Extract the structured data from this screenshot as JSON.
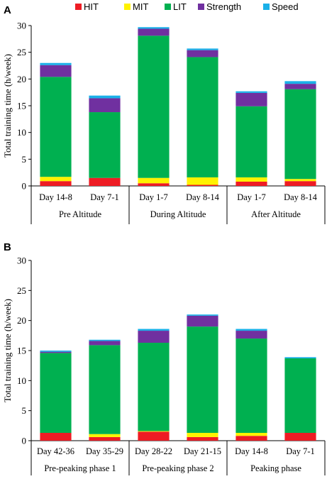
{
  "legend": {
    "items": [
      {
        "label": "HIT",
        "color": "#ee1c24"
      },
      {
        "label": "MIT",
        "color": "#fff200"
      },
      {
        "label": "LIT",
        "color": "#00b050"
      },
      {
        "label": "Strength",
        "color": "#7030a0"
      },
      {
        "label": "Speed",
        "color": "#1ab0e8"
      }
    ]
  },
  "chart_data": [
    {
      "type": "bar",
      "stacked": true,
      "panel_label": "A",
      "ylabel": "Total training time (h/week)",
      "ylim": [
        0,
        30
      ],
      "yticks": [
        "0",
        "5",
        "10",
        "15",
        "20",
        "25",
        "30"
      ],
      "categories": [
        "Day 14-8",
        "Day 7-1",
        "Day 1-7",
        "Day 8-14",
        "Day 1-7",
        "Day 8-14"
      ],
      "groups": [
        {
          "label": "Pre Altitude",
          "span": 2
        },
        {
          "label": "During Altitude",
          "span": 2
        },
        {
          "label": "After Altitude",
          "span": 2
        }
      ],
      "series": [
        {
          "name": "HIT",
          "values": [
            0.9,
            1.5,
            0.5,
            0.2,
            0.8,
            0.9
          ]
        },
        {
          "name": "MIT",
          "values": [
            0.8,
            0.0,
            1.0,
            1.4,
            0.8,
            0.4
          ]
        },
        {
          "name": "LIT",
          "values": [
            18.7,
            12.3,
            26.6,
            22.5,
            13.3,
            16.8
          ]
        },
        {
          "name": "Strength",
          "values": [
            2.2,
            2.6,
            1.3,
            1.3,
            2.5,
            1.0
          ]
        },
        {
          "name": "Speed",
          "values": [
            0.4,
            0.5,
            0.3,
            0.3,
            0.3,
            0.5
          ]
        }
      ]
    },
    {
      "type": "bar",
      "stacked": true,
      "panel_label": "B",
      "ylabel": "Total training time (h/week)",
      "ylim": [
        0,
        30
      ],
      "yticks": [
        "0",
        "5",
        "10",
        "15",
        "20",
        "25",
        "30"
      ],
      "categories": [
        "Day 42-36",
        "Day 35-29",
        "Day 28-22",
        "Day 21-15",
        "Day 14-8",
        "Day 7-1"
      ],
      "groups": [
        {
          "label": "Pre-peaking phase 1",
          "span": 2
        },
        {
          "label": "Pre-peaking phase 2",
          "span": 2
        },
        {
          "label": "Peaking phase",
          "span": 2
        }
      ],
      "series": [
        {
          "name": "HIT",
          "values": [
            1.3,
            0.6,
            1.5,
            0.6,
            0.8,
            1.3
          ]
        },
        {
          "name": "MIT",
          "values": [
            0.0,
            0.5,
            0.1,
            0.7,
            0.5,
            0.0
          ]
        },
        {
          "name": "LIT",
          "values": [
            13.3,
            14.8,
            14.7,
            17.7,
            15.7,
            12.4
          ]
        },
        {
          "name": "Strength",
          "values": [
            0.2,
            0.7,
            2.0,
            1.8,
            1.3,
            0.0
          ]
        },
        {
          "name": "Speed",
          "values": [
            0.2,
            0.2,
            0.3,
            0.2,
            0.3,
            0.2
          ]
        }
      ]
    }
  ]
}
